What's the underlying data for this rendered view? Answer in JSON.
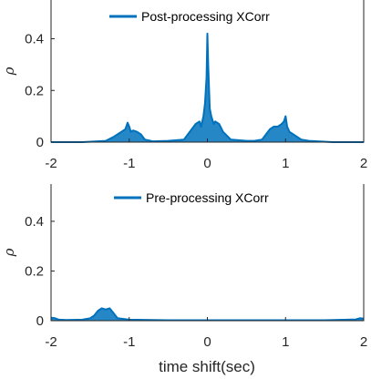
{
  "chart_data": [
    {
      "type": "line",
      "panel": "top",
      "xlabel": "",
      "ylabel": "ρ",
      "xlim": [
        -2,
        2
      ],
      "ylim": [
        0,
        0.55
      ],
      "xticks": [
        -2,
        -1,
        0,
        1,
        2
      ],
      "yticks": [
        0,
        0.2,
        0.4
      ],
      "xtick_labels": [
        "-2",
        "-1",
        "0",
        "1",
        "2"
      ],
      "ytick_labels": [
        "0",
        "0.2",
        "0.4"
      ],
      "grid": false,
      "legend_position": "top-center",
      "series": [
        {
          "name": "Post-processing XCorr",
          "color": "#0072BD",
          "x": [
            -2.0,
            -1.6,
            -1.3,
            -1.2,
            -1.15,
            -1.1,
            -1.05,
            -1.02,
            -1.0,
            -0.98,
            -0.95,
            -0.9,
            -0.85,
            -0.8,
            -0.7,
            -0.5,
            -0.3,
            -0.25,
            -0.2,
            -0.15,
            -0.1,
            -0.08,
            -0.05,
            -0.03,
            -0.01,
            0.0,
            0.01,
            0.03,
            0.05,
            0.08,
            0.1,
            0.15,
            0.2,
            0.3,
            0.5,
            0.6,
            0.7,
            0.75,
            0.8,
            0.85,
            0.9,
            0.95,
            0.98,
            1.0,
            1.02,
            1.05,
            1.1,
            1.15,
            1.2,
            1.3,
            1.6,
            2.0
          ],
          "values": [
            0.0,
            0.0,
            0.005,
            0.02,
            0.03,
            0.04,
            0.05,
            0.075,
            0.06,
            0.04,
            0.045,
            0.04,
            0.03,
            0.01,
            0.003,
            0.005,
            0.01,
            0.03,
            0.05,
            0.07,
            0.08,
            0.06,
            0.1,
            0.15,
            0.25,
            0.42,
            0.3,
            0.13,
            0.1,
            0.07,
            0.08,
            0.07,
            0.04,
            0.01,
            0.005,
            0.005,
            0.01,
            0.03,
            0.05,
            0.06,
            0.06,
            0.07,
            0.08,
            0.1,
            0.06,
            0.04,
            0.03,
            0.02,
            0.01,
            0.005,
            0.0,
            0.0
          ]
        }
      ]
    },
    {
      "type": "line",
      "panel": "bottom",
      "xlabel": "time shift(sec)",
      "ylabel": "ρ",
      "xlim": [
        -2,
        2
      ],
      "ylim": [
        0,
        0.55
      ],
      "xticks": [
        -2,
        -1,
        0,
        1,
        2
      ],
      "yticks": [
        0,
        0.2,
        0.4
      ],
      "xtick_labels": [
        "-2",
        "-1",
        "0",
        "1",
        "2"
      ],
      "ytick_labels": [
        "0",
        "0.2",
        "0.4"
      ],
      "grid": false,
      "legend_position": "top-center",
      "series": [
        {
          "name": "Pre-processing XCorr",
          "color": "#0072BD",
          "x": [
            -2.0,
            -1.95,
            -1.9,
            -1.8,
            -1.6,
            -1.5,
            -1.45,
            -1.4,
            -1.35,
            -1.3,
            -1.25,
            -1.2,
            -1.15,
            -1.0,
            -0.5,
            0.0,
            0.5,
            1.0,
            1.5,
            1.9,
            1.95,
            2.0
          ],
          "values": [
            0.012,
            0.01,
            0.004,
            0.003,
            0.004,
            0.01,
            0.02,
            0.04,
            0.05,
            0.045,
            0.05,
            0.03,
            0.01,
            0.004,
            0.002,
            0.002,
            0.002,
            0.002,
            0.002,
            0.005,
            0.01,
            0.008
          ]
        }
      ]
    }
  ]
}
